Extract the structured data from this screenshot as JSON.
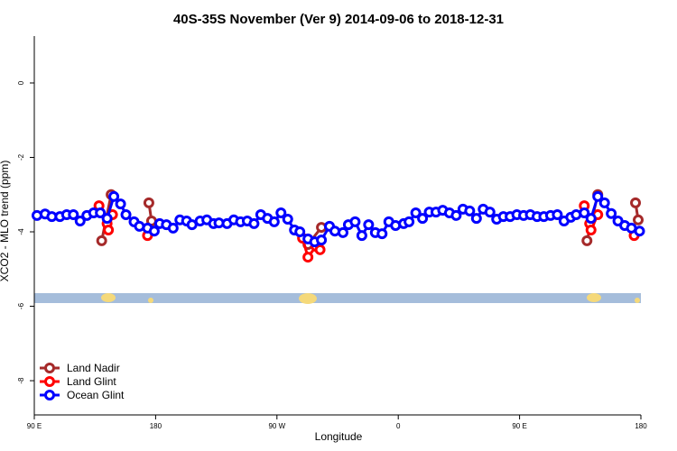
{
  "chart_data": {
    "type": "line",
    "title": "40S-35S November (Ver 9)   2014-09-06 to 2018-12-31",
    "x_label": "Longitude",
    "y_label": "XCO2 - MLO trend (ppm)",
    "xlim": [
      90,
      540
    ],
    "ylim": [
      -8.92,
      1.26
    ],
    "xticks": [
      {
        "value": 90,
        "label": "90 E"
      },
      180,
      {
        "value": 270,
        "label": "90 W"
      },
      {
        "value": 360,
        "label": "0"
      },
      {
        "value": 450,
        "label": "90 E"
      },
      {
        "value": 540,
        "label": "180"
      }
    ],
    "yticks": [
      0,
      -2,
      -4,
      -6,
      -8
    ],
    "legend": "bottom-left",
    "series": [
      {
        "name": "Land Nadir",
        "color": "#a52a2a",
        "x": [
          140,
          147,
          null,
          175,
          177,
          null,
          293,
          303,
          null,
          500,
          508,
          null,
          536,
          538
        ],
        "values": [
          -4.24,
          -3.0,
          null,
          -3.22,
          -3.71,
          null,
          -4.34,
          -3.88,
          null,
          -4.24,
          -3.0,
          null,
          -3.22,
          -3.68
        ]
      },
      {
        "name": "Land Glint",
        "color": "#ff0000",
        "x": [
          138,
          144,
          145,
          148,
          null,
          174,
          null,
          289,
          293,
          299,
          302,
          null,
          498,
          502,
          503,
          508,
          null,
          535
        ],
        "values": [
          -3.3,
          -3.78,
          -3.95,
          -3.54,
          null,
          -4.1,
          null,
          -4.17,
          -4.68,
          -4.39,
          -4.48,
          null,
          -3.3,
          -3.78,
          -3.95,
          -3.54,
          null,
          -4.1
        ]
      },
      {
        "name": "Ocean Glint",
        "color": "#0000ff",
        "x": [
          92,
          98,
          103,
          109,
          114,
          119,
          124,
          129,
          134,
          139,
          144,
          149,
          154,
          158,
          164,
          168,
          174,
          179,
          183,
          188,
          193,
          198,
          203,
          207,
          213,
          218,
          223,
          227,
          233,
          238,
          243,
          248,
          253,
          258,
          263,
          268,
          273,
          278,
          283,
          287,
          293,
          298,
          303,
          309,
          313,
          319,
          323,
          328,
          333,
          338,
          343,
          348,
          353,
          358,
          364,
          368,
          373,
          378,
          383,
          388,
          393,
          398,
          403,
          408,
          413,
          418,
          423,
          428,
          433,
          438,
          443,
          448,
          453,
          458,
          463,
          468,
          473,
          478,
          483,
          488,
          492,
          498,
          503,
          508,
          513,
          518,
          523,
          528,
          533,
          539
        ],
        "values": [
          -3.56,
          -3.52,
          -3.59,
          -3.59,
          -3.54,
          -3.54,
          -3.71,
          -3.56,
          -3.49,
          -3.49,
          -3.64,
          -3.05,
          -3.25,
          -3.54,
          -3.73,
          -3.85,
          -3.9,
          -3.98,
          -3.78,
          -3.81,
          -3.9,
          -3.68,
          -3.71,
          -3.81,
          -3.71,
          -3.68,
          -3.78,
          -3.76,
          -3.78,
          -3.68,
          -3.73,
          -3.71,
          -3.78,
          -3.54,
          -3.64,
          -3.73,
          -3.49,
          -3.66,
          -3.95,
          -4.0,
          -4.19,
          -4.27,
          -4.22,
          -3.85,
          -3.98,
          -4.02,
          -3.81,
          -3.73,
          -4.1,
          -3.81,
          -4.02,
          -4.05,
          -3.73,
          -3.83,
          -3.78,
          -3.73,
          -3.49,
          -3.64,
          -3.47,
          -3.47,
          -3.42,
          -3.49,
          -3.56,
          -3.39,
          -3.44,
          -3.64,
          -3.39,
          -3.47,
          -3.66,
          -3.59,
          -3.59,
          -3.54,
          -3.56,
          -3.54,
          -3.59,
          -3.59,
          -3.56,
          -3.54,
          -3.71,
          -3.61,
          -3.54,
          -3.49,
          -3.64,
          -3.05,
          -3.22,
          -3.51,
          -3.71,
          -3.83,
          -3.9,
          -3.98
        ]
      }
    ]
  }
}
